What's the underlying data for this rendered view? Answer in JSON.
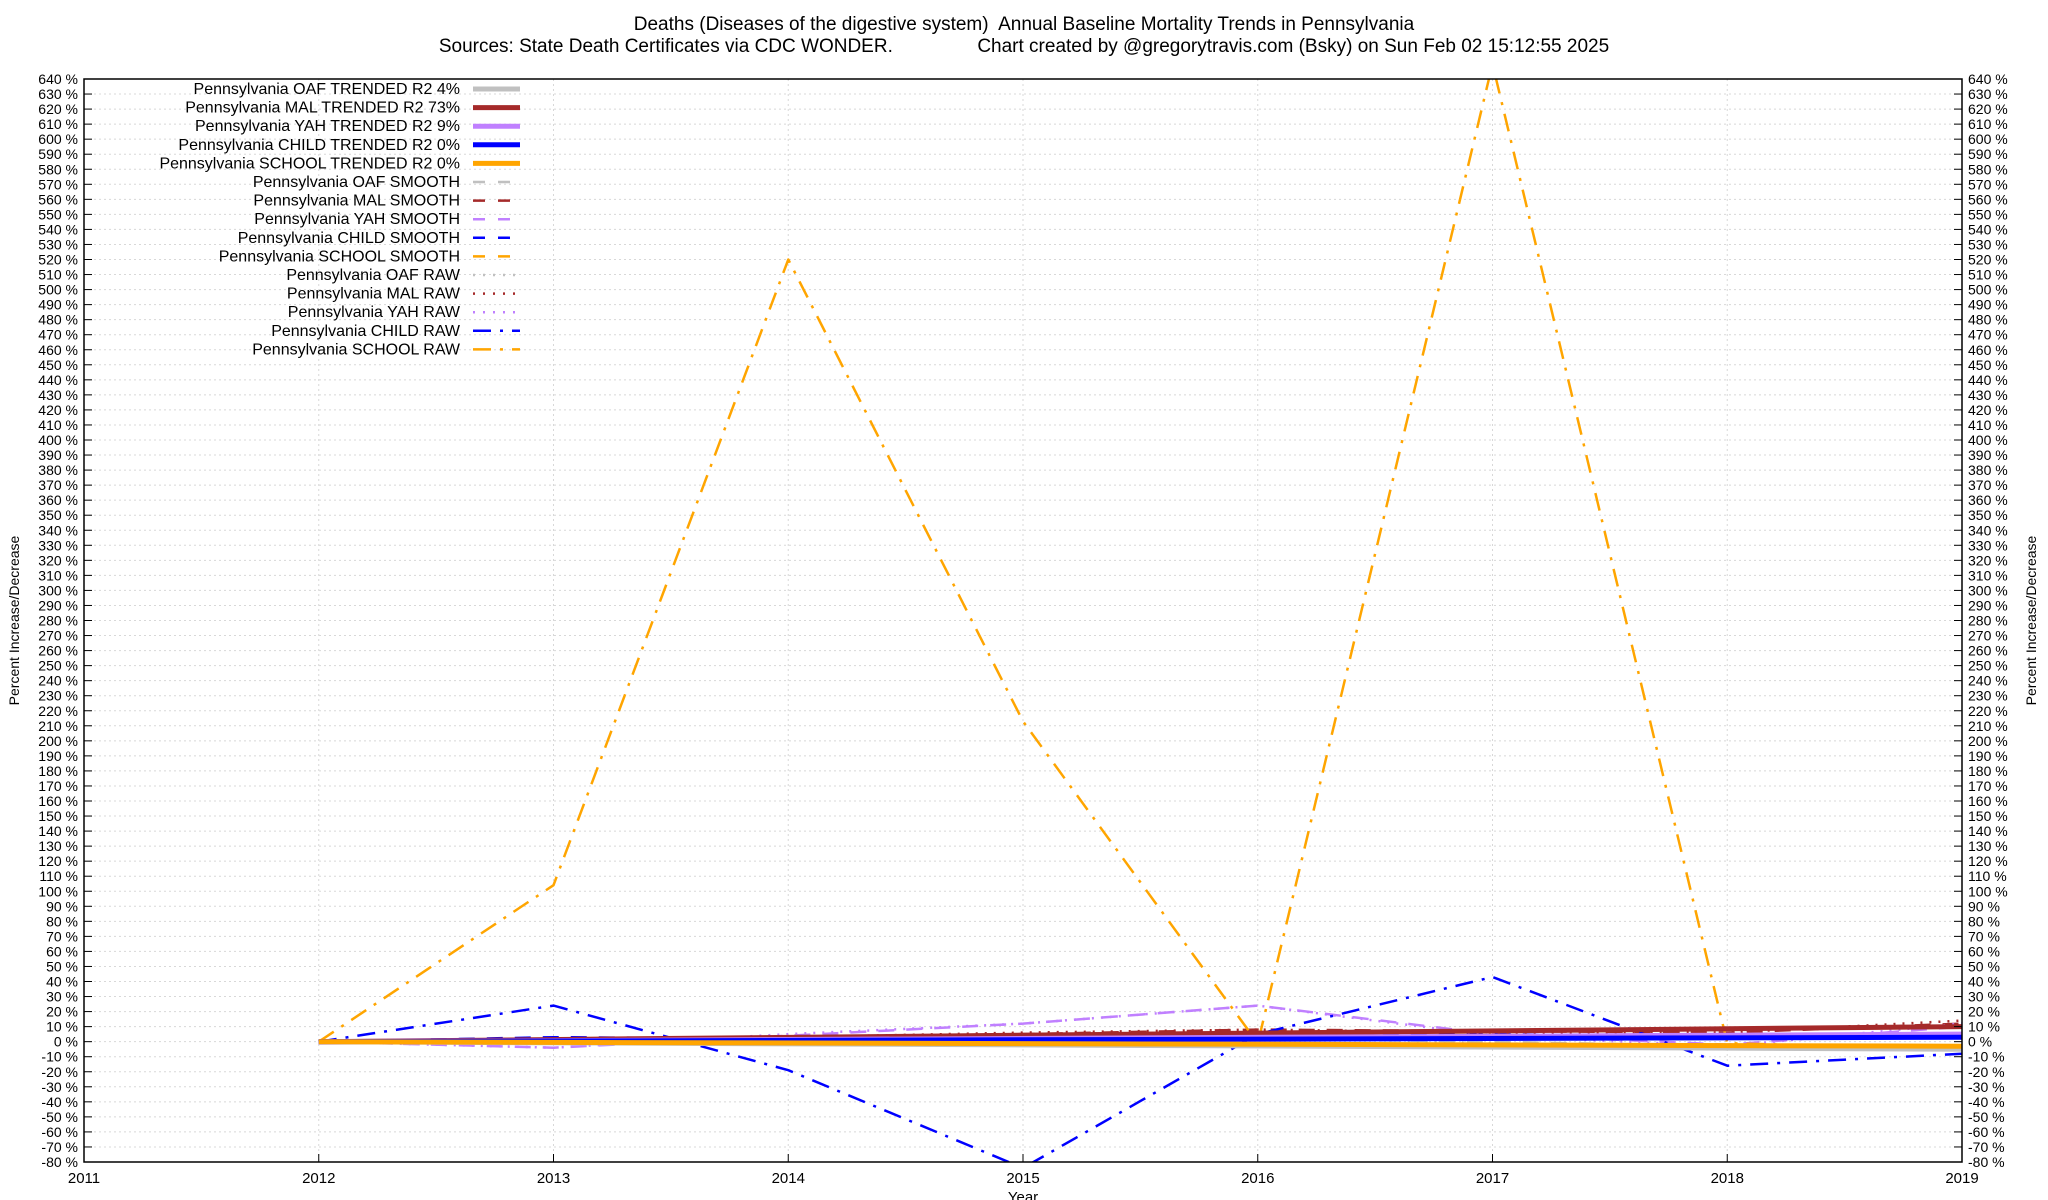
{
  "chart_data": {
    "type": "line",
    "title": "Deaths (Diseases of the digestive system)  Annual Baseline Mortality Trends in Pennsylvania",
    "subtitle": "Sources: State Death Certificates via CDC WONDER.                Chart created by @gregorytravis.com (Bsky) on Sun Feb 02 15:12:55 2025",
    "xlabel": "Year",
    "ylabel": "Percent Increase/Decrease",
    "ylabel_right": "Percent Increase/Decrease",
    "xlim": [
      2011,
      2019
    ],
    "ylim": [
      -80,
      640
    ],
    "y_tick_step": 10,
    "y_tick_suffix": " %",
    "x_ticks": [
      "2011",
      "2012",
      "2013",
      "2014",
      "2015",
      "2016",
      "2017",
      "2018",
      "2019"
    ],
    "grid": true,
    "legend_position": "top-left",
    "series": [
      {
        "name": "Pennsylvania OAF TRENDED R2  4%",
        "color": "#c0c0c0",
        "style": "solid",
        "width": 5,
        "x": [
          2012,
          2019
        ],
        "y": [
          0,
          -5
        ]
      },
      {
        "name": "Pennsylvania MAL TRENDED R2  73%",
        "color": "#a52a2a",
        "style": "solid",
        "width": 5,
        "x": [
          2012,
          2019
        ],
        "y": [
          0,
          10
        ]
      },
      {
        "name": "Pennsylvania YAH TRENDED R2  9%",
        "color": "#c080ff",
        "style": "solid",
        "width": 5,
        "x": [
          2012,
          2019
        ],
        "y": [
          0,
          5
        ]
      },
      {
        "name": "Pennsylvania CHILD TRENDED R2  0%",
        "color": "#0000ff",
        "style": "solid",
        "width": 5,
        "x": [
          2012,
          2019
        ],
        "y": [
          0,
          3
        ]
      },
      {
        "name": "Pennsylvania SCHOOL TRENDED R2  0%",
        "color": "#ffa500",
        "style": "solid",
        "width": 5,
        "x": [
          2012,
          2019
        ],
        "y": [
          0,
          -3
        ]
      },
      {
        "name": "Pennsylvania OAF SMOOTH",
        "color": "#c0c0c0",
        "style": "dash",
        "width": 2.5,
        "x": [
          2012,
          2013,
          2014,
          2015,
          2016,
          2017,
          2018,
          2019
        ],
        "y": [
          0,
          1,
          2,
          3,
          2,
          0,
          -3,
          -4
        ]
      },
      {
        "name": "Pennsylvania MAL SMOOTH",
        "color": "#a52a2a",
        "style": "dash",
        "width": 2.5,
        "x": [
          2012,
          2013,
          2014,
          2015,
          2016,
          2017,
          2018,
          2019
        ],
        "y": [
          0,
          1,
          3,
          5,
          8,
          7,
          6,
          12
        ]
      },
      {
        "name": "Pennsylvania YAH SMOOTH",
        "color": "#c080ff",
        "style": "dash",
        "width": 2.5,
        "x": [
          2012,
          2013,
          2014,
          2015,
          2016,
          2017,
          2018,
          2019
        ],
        "y": [
          0,
          -4,
          4,
          12,
          24,
          5,
          -2,
          10
        ]
      },
      {
        "name": "Pennsylvania CHILD SMOOTH",
        "color": "#0000ff",
        "style": "dash",
        "width": 2.5,
        "x": [
          2012,
          2013,
          2014,
          2015,
          2016,
          2017,
          2018,
          2019
        ],
        "y": [
          0,
          3,
          2,
          2,
          4,
          5,
          3,
          5
        ]
      },
      {
        "name": "Pennsylvania SCHOOL SMOOTH",
        "color": "#ffa500",
        "style": "dash",
        "width": 2.5,
        "x": [
          2012,
          2013,
          2014,
          2015,
          2016,
          2017,
          2018,
          2019
        ],
        "y": [
          0,
          -1,
          -2,
          -2,
          -3,
          -3,
          -4,
          -5
        ]
      },
      {
        "name": "Pennsylvania OAF RAW",
        "color": "#c0c0c0",
        "style": "dot",
        "width": 2.5,
        "x": [
          2012,
          2013,
          2014,
          2015,
          2016,
          2017,
          2018,
          2019
        ],
        "y": [
          0,
          1,
          2,
          2,
          3,
          -1,
          -4,
          -5
        ]
      },
      {
        "name": "Pennsylvania MAL RAW",
        "color": "#a52a2a",
        "style": "dot",
        "width": 2.5,
        "x": [
          2012,
          2013,
          2014,
          2015,
          2016,
          2017,
          2018,
          2019
        ],
        "y": [
          0,
          1,
          3,
          6,
          8,
          6,
          6,
          14
        ]
      },
      {
        "name": "Pennsylvania YAH RAW",
        "color": "#c080ff",
        "style": "dot",
        "width": 2.5,
        "x": [
          2012,
          2013,
          2014,
          2015,
          2016,
          2017,
          2018,
          2019
        ],
        "y": [
          0,
          -4,
          5,
          12,
          24,
          4,
          -3,
          12
        ]
      },
      {
        "name": "Pennsylvania CHILD RAW",
        "color": "#0000ff",
        "style": "dashdot",
        "width": 2.5,
        "x": [
          2012,
          2013,
          2014,
          2015,
          2016,
          2017,
          2018,
          2019
        ],
        "y": [
          0,
          24,
          -19,
          -84,
          5,
          43,
          -16,
          -8
        ]
      },
      {
        "name": "Pennsylvania SCHOOL RAW",
        "color": "#ffa500",
        "style": "dashdot",
        "width": 2.5,
        "x": [
          2012,
          2013,
          2014,
          2015,
          2016,
          2017,
          2018,
          2019
        ],
        "y": [
          0,
          104,
          520,
          213,
          -1,
          650,
          -1,
          -5
        ]
      }
    ]
  }
}
